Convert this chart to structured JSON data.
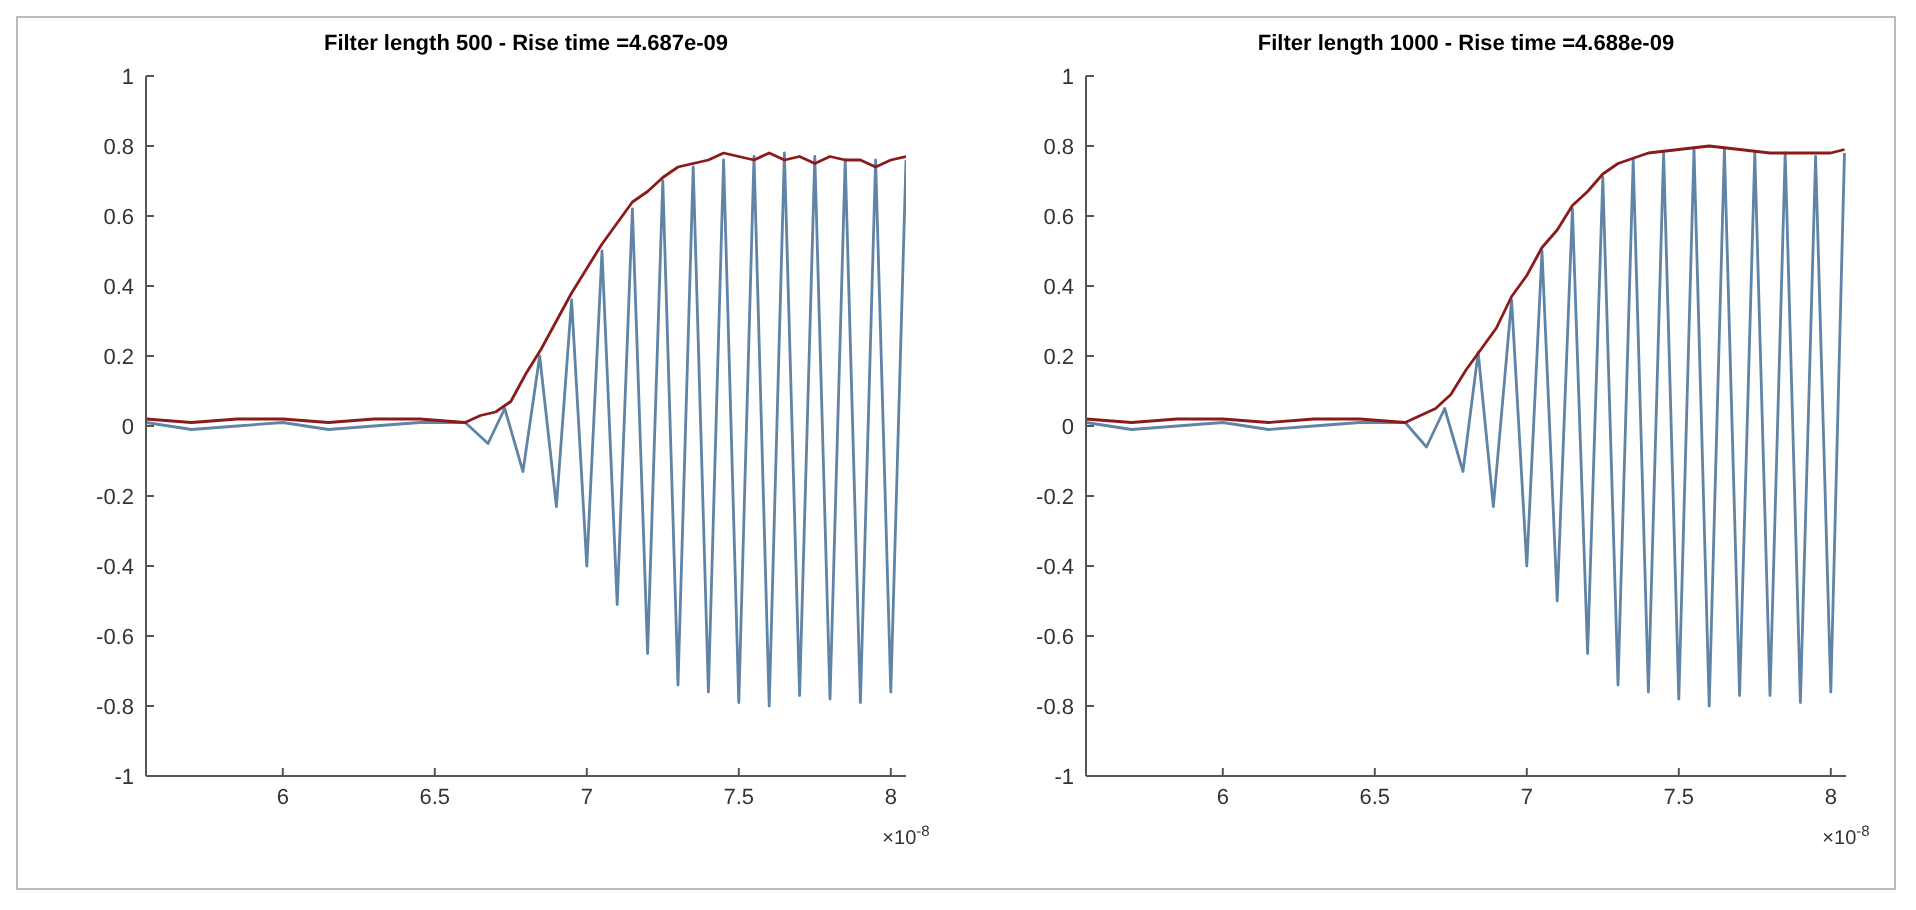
{
  "chart_data": [
    {
      "type": "line",
      "title": "Filter length 500 - Rise time =4.687e-09",
      "xlabel": "×10$^{-8}$",
      "xlim": [
        5.55,
        8.05
      ],
      "xticks": [
        6,
        6.5,
        7,
        7.5,
        8
      ],
      "ylim": [
        -1,
        1
      ],
      "yticks": [
        -1,
        -0.8,
        -0.6,
        -0.4,
        -0.2,
        0,
        0.2,
        0.4,
        0.6,
        0.8,
        1
      ],
      "grid": false,
      "legend": false,
      "marker": "none",
      "line_style": "solid",
      "series": [
        {
          "color": "#5f84a6",
          "x": [
            5.55,
            5.7,
            5.85,
            6.0,
            6.15,
            6.3,
            6.45,
            6.6,
            6.675,
            6.73,
            6.79,
            6.845,
            6.9,
            6.95,
            7.0,
            7.05,
            7.1,
            7.15,
            7.2,
            7.25,
            7.3,
            7.35,
            7.4,
            7.45,
            7.5,
            7.55,
            7.6,
            7.65,
            7.7,
            7.75,
            7.8,
            7.85,
            7.9,
            7.95,
            8.0,
            8.05
          ],
          "values": [
            0.01,
            -0.01,
            0.0,
            0.01,
            -0.01,
            0.0,
            0.01,
            0.01,
            -0.05,
            0.05,
            -0.13,
            0.2,
            -0.23,
            0.36,
            -0.4,
            0.5,
            -0.51,
            0.62,
            -0.65,
            0.7,
            -0.74,
            0.74,
            -0.76,
            0.76,
            -0.79,
            0.77,
            -0.8,
            0.78,
            -0.77,
            0.77,
            -0.78,
            0.76,
            -0.79,
            0.76,
            -0.76,
            0.76
          ]
        },
        {
          "color": "#8b1a1a",
          "x": [
            5.55,
            5.7,
            5.85,
            6.0,
            6.15,
            6.3,
            6.45,
            6.6,
            6.65,
            6.7,
            6.75,
            6.8,
            6.85,
            6.9,
            6.95,
            7.0,
            7.05,
            7.1,
            7.15,
            7.2,
            7.25,
            7.3,
            7.35,
            7.4,
            7.45,
            7.5,
            7.55,
            7.6,
            7.65,
            7.7,
            7.75,
            7.8,
            7.85,
            7.9,
            7.95,
            8.0,
            8.05
          ],
          "values": [
            0.02,
            0.01,
            0.02,
            0.02,
            0.01,
            0.02,
            0.02,
            0.01,
            0.03,
            0.04,
            0.07,
            0.15,
            0.22,
            0.3,
            0.38,
            0.45,
            0.52,
            0.58,
            0.64,
            0.67,
            0.71,
            0.74,
            0.75,
            0.76,
            0.78,
            0.77,
            0.76,
            0.78,
            0.76,
            0.77,
            0.75,
            0.77,
            0.76,
            0.76,
            0.74,
            0.76,
            0.77
          ]
        }
      ]
    },
    {
      "type": "line",
      "title": "Filter length 1000 - Rise time =4.688e-09",
      "xlabel": "×10$^{-8}$",
      "xlim": [
        5.55,
        8.05
      ],
      "xticks": [
        6,
        6.5,
        7,
        7.5,
        8
      ],
      "ylim": [
        -1,
        1
      ],
      "yticks": [
        -1,
        -0.8,
        -0.6,
        -0.4,
        -0.2,
        0,
        0.2,
        0.4,
        0.6,
        0.8,
        1
      ],
      "grid": false,
      "legend": false,
      "marker": "none",
      "line_style": "solid",
      "series": [
        {
          "color": "#5f84a6",
          "x": [
            5.55,
            5.7,
            5.85,
            6.0,
            6.15,
            6.3,
            6.45,
            6.6,
            6.67,
            6.73,
            6.79,
            6.84,
            6.89,
            6.95,
            7.0,
            7.05,
            7.1,
            7.15,
            7.2,
            7.25,
            7.3,
            7.35,
            7.4,
            7.45,
            7.5,
            7.55,
            7.6,
            7.65,
            7.7,
            7.75,
            7.8,
            7.85,
            7.9,
            7.95,
            8.0,
            8.045
          ],
          "values": [
            0.01,
            -0.01,
            0.0,
            0.01,
            -0.01,
            0.0,
            0.01,
            0.01,
            -0.06,
            0.05,
            -0.13,
            0.21,
            -0.23,
            0.36,
            -0.4,
            0.5,
            -0.5,
            0.62,
            -0.65,
            0.71,
            -0.74,
            0.76,
            -0.76,
            0.78,
            -0.78,
            0.79,
            -0.8,
            0.79,
            -0.77,
            0.78,
            -0.77,
            0.78,
            -0.79,
            0.77,
            -0.76,
            0.78
          ]
        },
        {
          "color": "#8b1a1a",
          "x": [
            5.55,
            5.7,
            5.85,
            6.0,
            6.15,
            6.3,
            6.45,
            6.6,
            6.65,
            6.7,
            6.75,
            6.8,
            6.85,
            6.9,
            6.95,
            7.0,
            7.05,
            7.1,
            7.15,
            7.2,
            7.25,
            7.3,
            7.4,
            7.5,
            7.6,
            7.7,
            7.8,
            7.9,
            8.0,
            8.045
          ],
          "values": [
            0.02,
            0.01,
            0.02,
            0.02,
            0.01,
            0.02,
            0.02,
            0.01,
            0.03,
            0.05,
            0.09,
            0.16,
            0.22,
            0.28,
            0.37,
            0.43,
            0.51,
            0.56,
            0.63,
            0.67,
            0.72,
            0.75,
            0.78,
            0.79,
            0.8,
            0.79,
            0.78,
            0.78,
            0.78,
            0.79
          ]
        }
      ]
    }
  ]
}
